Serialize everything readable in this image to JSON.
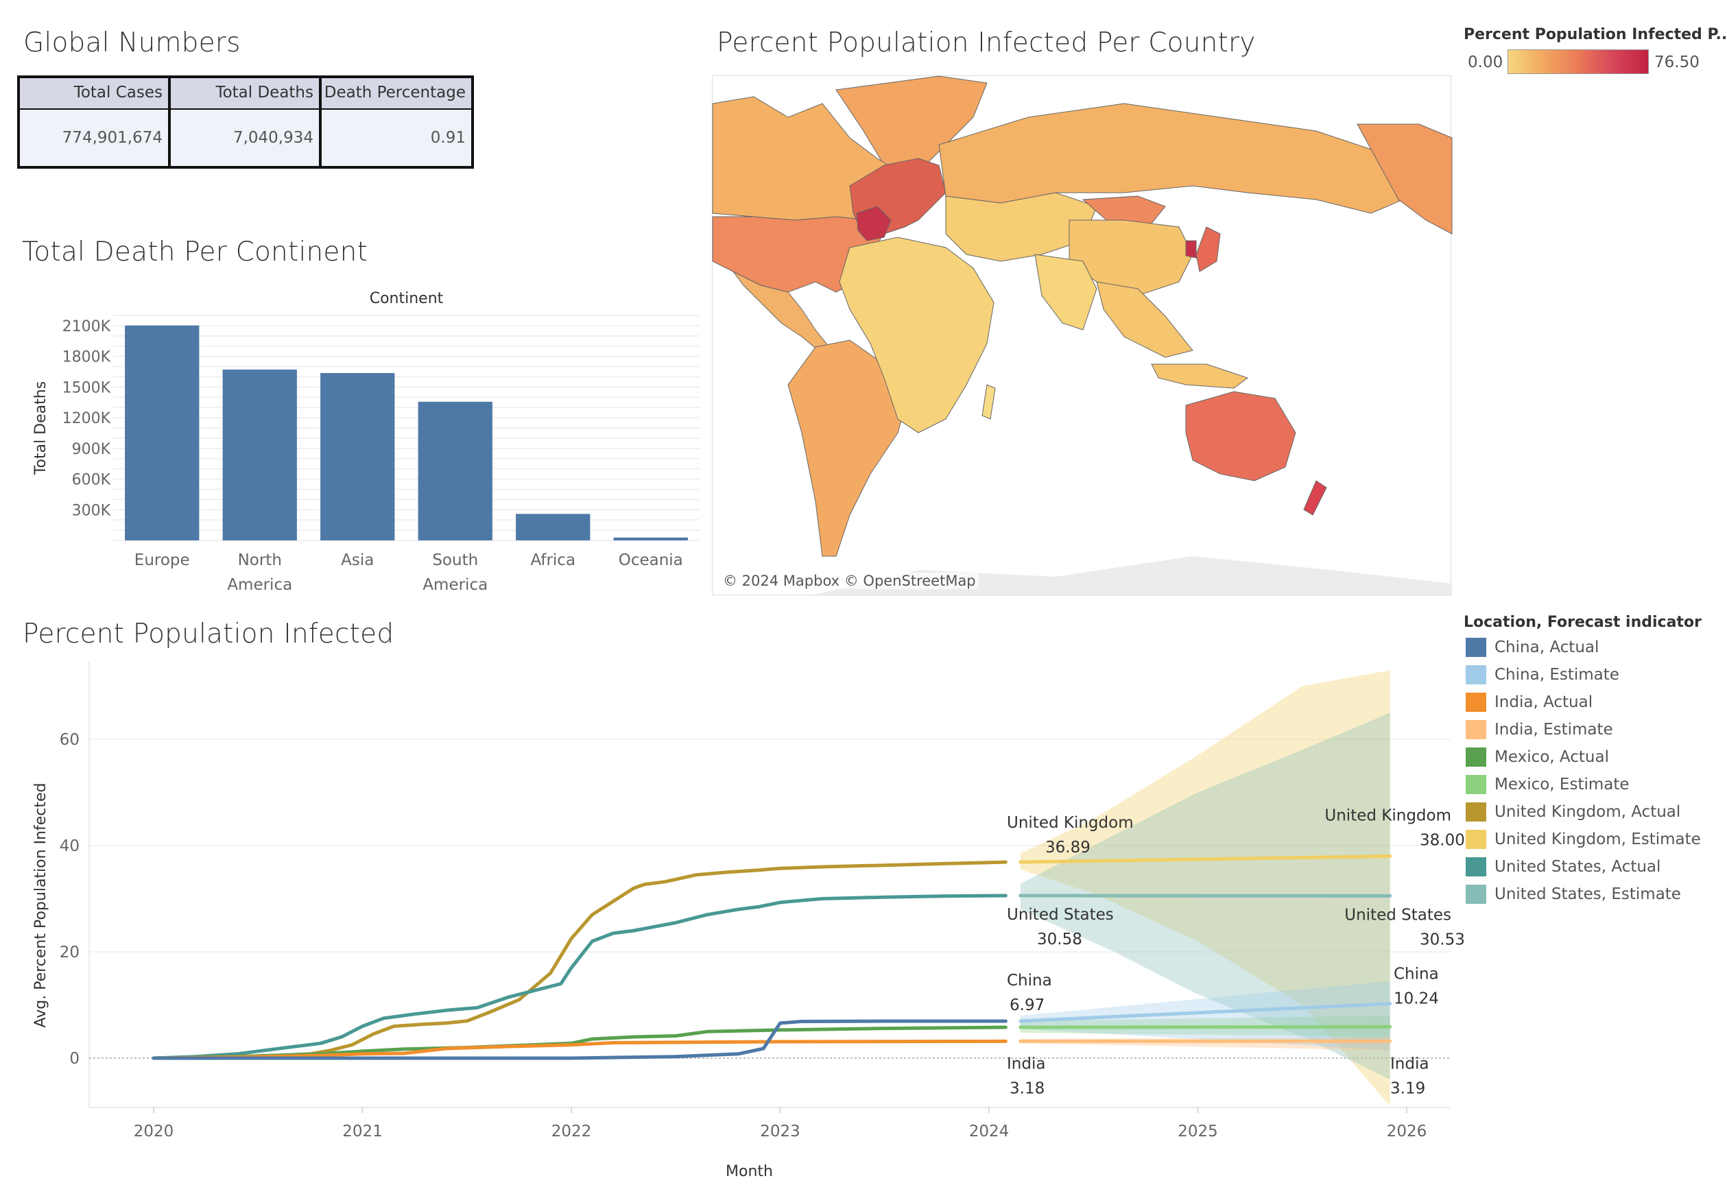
{
  "global_numbers": {
    "title": "Global Numbers",
    "headers": [
      "Total Cases",
      "Total Deaths",
      "Death Percentage"
    ],
    "values": [
      "774,901,674",
      "7,040,934",
      "0.91"
    ]
  },
  "map": {
    "title": "Percent Population Infected Per Country",
    "legend_title": "Percent Population Infected P..",
    "legend_min": "0.00",
    "legend_max": "76.50",
    "credit": "© 2024 Mapbox © OpenStreetMap",
    "colors": {
      "low": "#f6d77e",
      "mid": "#ea7a58",
      "high": "#c0223f"
    }
  },
  "chart_data": [
    {
      "type": "bar",
      "title": "Total Death Per Continent",
      "header": "Continent",
      "ylabel": "Total Deaths",
      "categories": [
        "Europe",
        "North America",
        "Asia",
        "South America",
        "Africa",
        "Oceania"
      ],
      "category_lines": [
        [
          "Europe"
        ],
        [
          "North",
          "America"
        ],
        [
          "Asia"
        ],
        [
          "South",
          "America"
        ],
        [
          "Africa"
        ],
        [
          "Oceania"
        ]
      ],
      "values": [
        2102000,
        1671000,
        1637000,
        1356000,
        259000,
        28000
      ],
      "yticks": [
        300000,
        600000,
        900000,
        1200000,
        1500000,
        1800000,
        2100000
      ],
      "ytick_labels": [
        "300K",
        "600K",
        "900K",
        "1200K",
        "1500K",
        "1800K",
        "2100K"
      ],
      "ylim": [
        0,
        2200000
      ],
      "color": "#4e79a7"
    },
    {
      "type": "line",
      "title": "Percent Population Infected",
      "xlabel": "Month",
      "ylabel": "Avg. Percent Population Infected",
      "xticks": [
        "2020",
        "2021",
        "2022",
        "2023",
        "2024",
        "2025",
        "2026"
      ],
      "yticks": [
        0,
        20,
        40,
        60
      ],
      "ylim": [
        -10,
        73
      ],
      "legend_title": "Location, Forecast indicator",
      "series": [
        {
          "name": "United Kingdom, Actual",
          "color": "#b9972f",
          "x": [
            2020.0,
            2020.3,
            2020.6,
            2020.75,
            2020.85,
            2020.95,
            2021.05,
            2021.15,
            2021.3,
            2021.4,
            2021.5,
            2021.6,
            2021.75,
            2021.9,
            2022.0,
            2022.1,
            2022.2,
            2022.3,
            2022.35,
            2022.45,
            2022.6,
            2022.75,
            2022.9,
            2023.0,
            2023.2,
            2023.5,
            2023.8,
            2024.08
          ],
          "y": [
            0,
            0.2,
            0.5,
            0.8,
            1.5,
            2.5,
            4.5,
            6.0,
            6.4,
            6.6,
            7.0,
            8.5,
            11.0,
            16.0,
            22.5,
            27.0,
            29.5,
            32.0,
            32.7,
            33.2,
            34.5,
            35.0,
            35.4,
            35.7,
            36.0,
            36.3,
            36.6,
            36.89
          ]
        },
        {
          "name": "United States, Actual",
          "color": "#499894",
          "x": [
            2020.0,
            2020.2,
            2020.4,
            2020.6,
            2020.8,
            2020.9,
            2021.0,
            2021.1,
            2021.25,
            2021.4,
            2021.55,
            2021.7,
            2021.85,
            2021.95,
            2022.0,
            2022.1,
            2022.2,
            2022.3,
            2022.5,
            2022.65,
            2022.8,
            2022.9,
            2023.0,
            2023.2,
            2023.5,
            2023.8,
            2024.08
          ],
          "y": [
            0,
            0.3,
            0.8,
            1.8,
            2.8,
            4.0,
            6.0,
            7.5,
            8.3,
            9.0,
            9.5,
            11.5,
            13.0,
            14.0,
            17.0,
            22.0,
            23.5,
            24.0,
            25.5,
            27.0,
            28.0,
            28.5,
            29.3,
            30.0,
            30.3,
            30.5,
            30.58
          ]
        },
        {
          "name": "Mexico, Actual",
          "color": "#59a14f",
          "x": [
            2020.0,
            2020.4,
            2020.8,
            2021.0,
            2021.2,
            2021.5,
            2021.75,
            2022.0,
            2022.1,
            2022.3,
            2022.5,
            2022.65,
            2023.0,
            2023.5,
            2024.08
          ],
          "y": [
            0,
            0.3,
            0.8,
            1.3,
            1.7,
            2.0,
            2.4,
            2.8,
            3.6,
            4.0,
            4.2,
            5.0,
            5.3,
            5.6,
            5.8
          ]
        },
        {
          "name": "India, Actual",
          "color": "#f28e2b",
          "x": [
            2020.0,
            2020.4,
            2020.8,
            2021.0,
            2021.2,
            2021.4,
            2021.7,
            2022.0,
            2022.2,
            2023.0,
            2024.08
          ],
          "y": [
            0,
            0.2,
            0.5,
            0.8,
            0.9,
            1.8,
            2.2,
            2.5,
            2.9,
            3.1,
            3.18
          ]
        },
        {
          "name": "China, Actual",
          "color": "#4e79a7",
          "x": [
            2020.0,
            2021.0,
            2022.0,
            2022.5,
            2022.8,
            2022.92,
            2023.0,
            2023.1,
            2023.5,
            2024.08
          ],
          "y": [
            0,
            0,
            0,
            0.3,
            0.8,
            1.8,
            6.6,
            6.9,
            6.97,
            6.97
          ]
        },
        {
          "name": "United Kingdom, Estimate",
          "color": "#f1ce63",
          "x": [
            2024.15,
            2025.92
          ],
          "y": [
            36.89,
            38.0
          ],
          "band_x": [
            2024.15,
            2024.5,
            2025.0,
            2025.5,
            2025.92
          ],
          "band_upper": [
            38.5,
            45,
            57,
            70,
            73
          ],
          "band_lower": [
            35.5,
            31,
            22,
            10,
            -9
          ]
        },
        {
          "name": "United States, Estimate",
          "color": "#86bcb6",
          "x": [
            2024.15,
            2025.92
          ],
          "y": [
            30.58,
            30.53
          ],
          "band_x": [
            2024.15,
            2024.6,
            2025.0,
            2025.5,
            2025.92
          ],
          "band_upper": [
            32.8,
            42,
            50,
            58,
            65
          ],
          "band_lower": [
            28.0,
            20,
            12,
            4,
            -4
          ]
        },
        {
          "name": "Mexico, Estimate",
          "color": "#8cd17d",
          "x": [
            2024.15,
            2025.92
          ],
          "y": [
            5.8,
            5.9
          ],
          "band_x": [
            2024.15,
            2025.92
          ],
          "band_upper": [
            7.0,
            8.0
          ],
          "band_lower": [
            4.8,
            4.0
          ]
        },
        {
          "name": "India, Estimate",
          "color": "#ffbe7d",
          "x": [
            2024.15,
            2025.92
          ],
          "y": [
            3.18,
            3.19
          ],
          "band_x": [
            2024.15,
            2025.92
          ],
          "band_upper": [
            3.6,
            4.0
          ],
          "band_lower": [
            2.8,
            1.5
          ]
        },
        {
          "name": "China, Estimate",
          "color": "#a0cbe8",
          "x": [
            2024.15,
            2025.92
          ],
          "y": [
            6.97,
            10.24
          ],
          "band_x": [
            2024.15,
            2025.92
          ],
          "band_upper": [
            8.0,
            14.5
          ],
          "band_lower": [
            5.5,
            1.5
          ]
        }
      ],
      "legend_order": [
        {
          "name": "China, Actual",
          "color": "#4e79a7"
        },
        {
          "name": "China, Estimate",
          "color": "#a0cbe8"
        },
        {
          "name": "India, Actual",
          "color": "#f28e2b"
        },
        {
          "name": "India, Estimate",
          "color": "#ffbe7d"
        },
        {
          "name": "Mexico, Actual",
          "color": "#59a14f"
        },
        {
          "name": "Mexico, Estimate",
          "color": "#8cd17d"
        },
        {
          "name": "United Kingdom, Actual",
          "color": "#b9972f"
        },
        {
          "name": "United Kingdom, Estimate",
          "color": "#f1ce63"
        },
        {
          "name": "United States, Actual",
          "color": "#499894"
        },
        {
          "name": "United States, Estimate",
          "color": "#86bcb6"
        }
      ],
      "annotations": [
        {
          "name": "United Kingdom",
          "value": "36.89",
          "x": 2024.08,
          "y": 36.89,
          "side": "start"
        },
        {
          "name": "United Kingdom",
          "value": "38.00",
          "x": 2025.92,
          "y": 38.0,
          "side": "end"
        },
        {
          "name": "United States",
          "value": "30.58",
          "x": 2024.08,
          "y": 30.58,
          "side": "start"
        },
        {
          "name": "United States",
          "value": "30.53",
          "x": 2025.92,
          "y": 30.53,
          "side": "end"
        },
        {
          "name": "China",
          "value": "6.97",
          "x": 2024.08,
          "y": 6.97,
          "side": "start"
        },
        {
          "name": "China",
          "value": "10.24",
          "x": 2025.92,
          "y": 10.24,
          "side": "end"
        },
        {
          "name": "India",
          "value": "3.18",
          "x": 2024.08,
          "y": 3.18,
          "side": "start"
        },
        {
          "name": "India",
          "value": "3.19",
          "x": 2025.92,
          "y": 3.19,
          "side": "end"
        }
      ]
    }
  ]
}
